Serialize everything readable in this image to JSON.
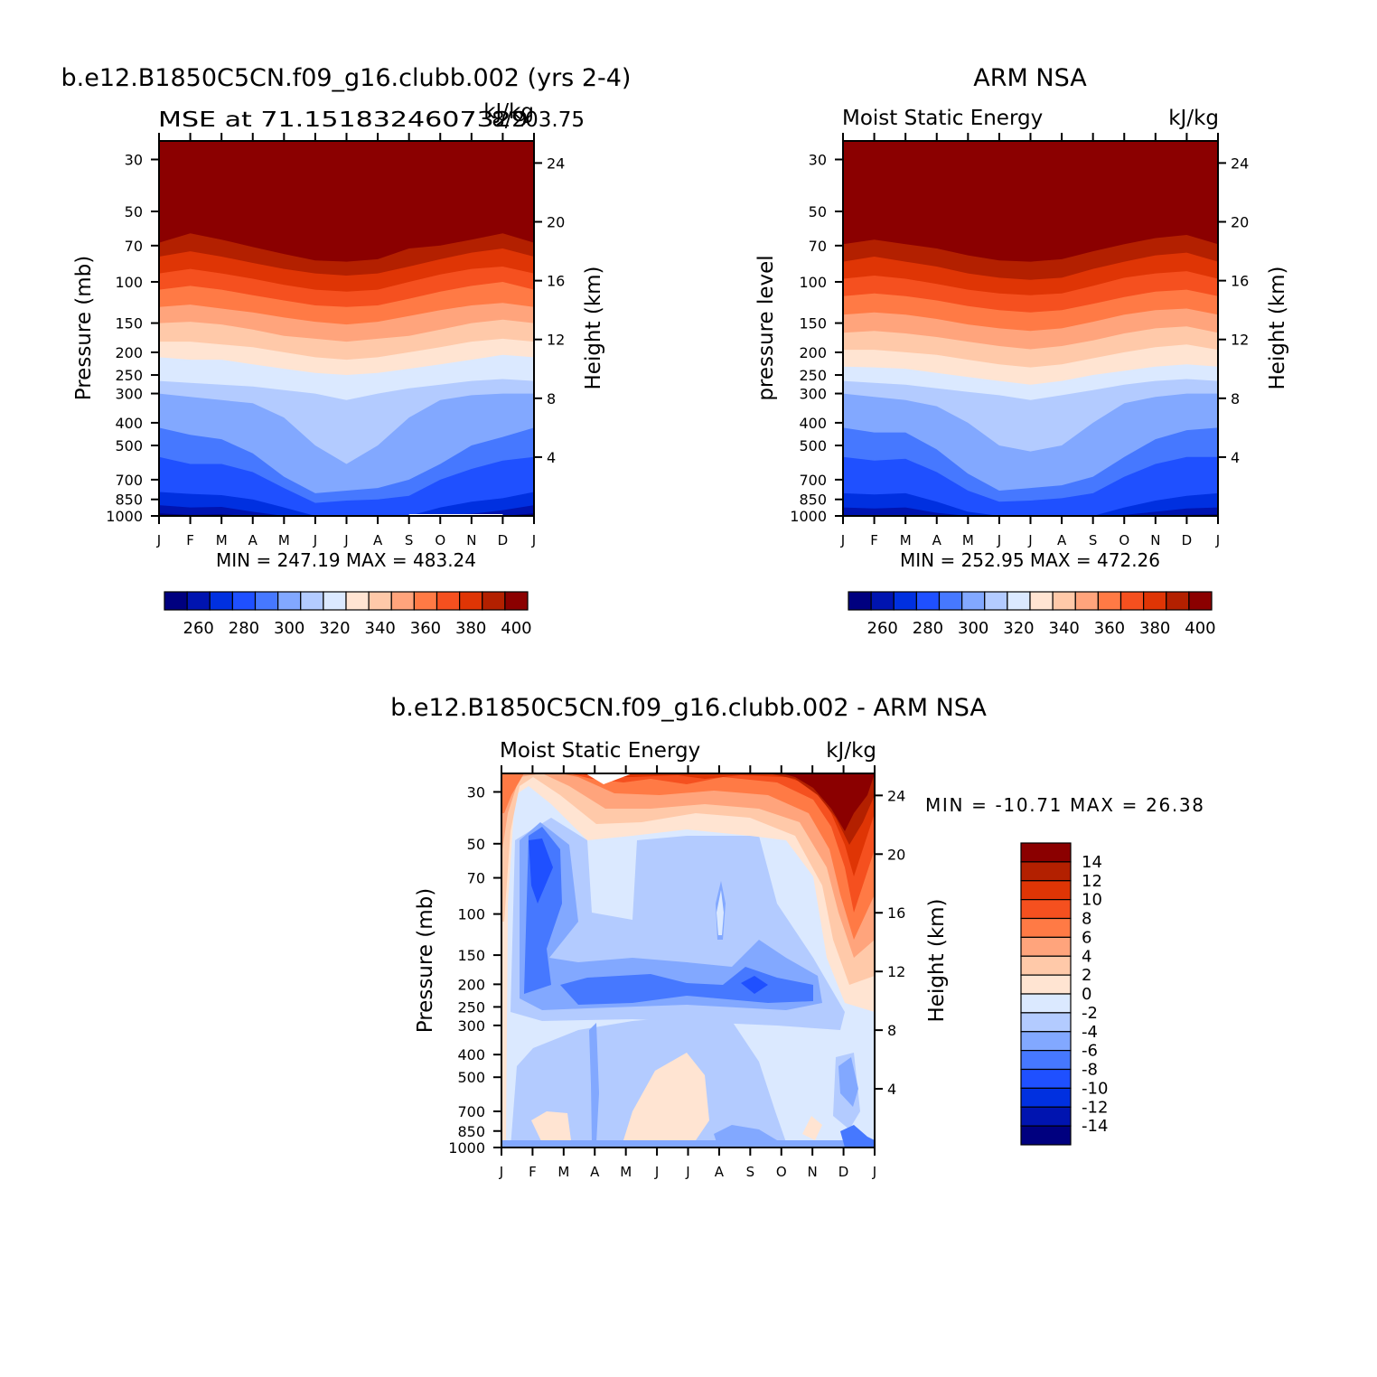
{
  "colors": {
    "mse_scale": [
      "#00007f",
      "#0014b0",
      "#0030e0",
      "#1f50ff",
      "#4678ff",
      "#82a8ff",
      "#b3cbff",
      "#dbe9ff",
      "#ffe4d2",
      "#ffc9a9",
      "#ffa47c",
      "#ff7a45",
      "#f5501f",
      "#df3505",
      "#b32000",
      "#8b0000"
    ],
    "diff_scale": [
      "#8b0000",
      "#b32000",
      "#df3505",
      "#f5501f",
      "#ff7a45",
      "#ffa47c",
      "#ffc9a9",
      "#ffe4d2",
      "#dbe9ff",
      "#b3cbff",
      "#82a8ff",
      "#4678ff",
      "#1f50ff",
      "#0030e0",
      "#0014b0",
      "#00007f"
    ]
  },
  "chart_data": [
    {
      "type": "heatmap",
      "title": "b.e12.B1850C5CN.f09_g16.clubb.002 (yrs 2-4)",
      "left_subtitle": "MSE at 71.1518324607329",
      "overlap_subtitle": "8/203.75",
      "right_subtitle": "kJ/kg",
      "x_tick_labels": [
        "J",
        "F",
        "M",
        "A",
        "M",
        "J",
        "J",
        "A",
        "S",
        "O",
        "N",
        "D",
        "J"
      ],
      "y_tick_labels": [
        "30",
        "50",
        "70",
        "100",
        "150",
        "200",
        "250",
        "300",
        "400",
        "500",
        "700",
        "850",
        "1000"
      ],
      "y_tick_values": [
        30,
        50,
        70,
        100,
        150,
        200,
        250,
        300,
        400,
        500,
        700,
        850,
        1000
      ],
      "ylabel": "Pressure (mb)",
      "right_tick_labels": [
        "24",
        "20",
        "16",
        "12",
        "8",
        "4"
      ],
      "right_tick_values": [
        24,
        20,
        16,
        12,
        8,
        4
      ],
      "right_ylabel": "Height (km)",
      "stats": "MIN = 247.19 MAX = 483.24",
      "colorbar_labels": [
        "260",
        "280",
        "300",
        "320",
        "340",
        "360",
        "380",
        "400"
      ],
      "colorbar_values": [
        260,
        280,
        300,
        320,
        340,
        360,
        380,
        400
      ],
      "boundaries_hPa": {
        "levels": [
          255,
          265,
          275,
          285,
          295,
          305,
          315,
          325,
          335,
          345,
          355,
          365,
          375,
          385,
          395
        ],
        "month_points": [
          0,
          1,
          2,
          3,
          4,
          5,
          6,
          7,
          8,
          9,
          10,
          11,
          12
        ],
        "p": [
          [
            975,
            990,
            985,
            1000,
            1000,
            1000,
            1000,
            1000,
            1000,
            1000,
            1000,
            1000,
            975
          ],
          [
            900,
            920,
            915,
            960,
            1000,
            1000,
            1000,
            1000,
            1000,
            990,
            980,
            945,
            900
          ],
          [
            790,
            805,
            815,
            850,
            920,
            1000,
            1000,
            1000,
            1000,
            920,
            870,
            840,
            790
          ],
          [
            560,
            600,
            600,
            650,
            760,
            880,
            860,
            850,
            820,
            700,
            630,
            580,
            560
          ],
          [
            420,
            450,
            470,
            540,
            680,
            800,
            780,
            760,
            700,
            600,
            500,
            460,
            420
          ],
          [
            300,
            310,
            320,
            330,
            380,
            500,
            600,
            500,
            380,
            320,
            305,
            300,
            300
          ],
          [
            265,
            270,
            275,
            280,
            290,
            300,
            320,
            300,
            285,
            275,
            265,
            260,
            265
          ],
          [
            210,
            215,
            215,
            225,
            235,
            245,
            250,
            245,
            235,
            225,
            215,
            205,
            210
          ],
          [
            180,
            180,
            185,
            190,
            200,
            210,
            215,
            210,
            200,
            190,
            180,
            175,
            180
          ],
          [
            150,
            148,
            152,
            160,
            170,
            175,
            180,
            175,
            170,
            160,
            150,
            145,
            150
          ],
          [
            128,
            125,
            130,
            135,
            142,
            148,
            152,
            148,
            140,
            132,
            126,
            123,
            128
          ],
          [
            108,
            104,
            108,
            114,
            120,
            126,
            128,
            126,
            118,
            110,
            104,
            100,
            108
          ],
          [
            92,
            88,
            92,
            97,
            103,
            108,
            110,
            108,
            100,
            93,
            88,
            86,
            92
          ],
          [
            78,
            74,
            78,
            83,
            88,
            92,
            94,
            92,
            86,
            80,
            75,
            72,
            78
          ],
          [
            68,
            62,
            66,
            71,
            76,
            81,
            82,
            80,
            72,
            70,
            66,
            62,
            68
          ]
        ]
      }
    },
    {
      "type": "heatmap",
      "title": "ARM NSA",
      "left_subtitle": "Moist Static Energy",
      "right_subtitle": "kJ/kg",
      "x_tick_labels": [
        "J",
        "F",
        "M",
        "A",
        "M",
        "J",
        "J",
        "A",
        "S",
        "O",
        "N",
        "D",
        "J"
      ],
      "y_tick_labels": [
        "30",
        "50",
        "70",
        "100",
        "150",
        "200",
        "250",
        "300",
        "400",
        "500",
        "700",
        "850",
        "1000"
      ],
      "y_tick_values": [
        30,
        50,
        70,
        100,
        150,
        200,
        250,
        300,
        400,
        500,
        700,
        850,
        1000
      ],
      "ylabel": "pressure level",
      "right_tick_labels": [
        "24",
        "20",
        "16",
        "12",
        "8",
        "4"
      ],
      "right_tick_values": [
        24,
        20,
        16,
        12,
        8,
        4
      ],
      "right_ylabel": "Height (km)",
      "stats": "MIN = 252.95 MAX = 472.26",
      "colorbar_labels": [
        "260",
        "280",
        "300",
        "320",
        "340",
        "360",
        "380",
        "400"
      ],
      "colorbar_values": [
        260,
        280,
        300,
        320,
        340,
        360,
        380,
        400
      ],
      "boundaries_hPa": {
        "levels": [
          255,
          265,
          275,
          285,
          295,
          305,
          315,
          325,
          335,
          345,
          355,
          365,
          375,
          385,
          395
        ],
        "month_points": [
          0,
          1,
          2,
          3,
          4,
          5,
          6,
          7,
          8,
          9,
          10,
          11,
          12
        ],
        "p": [
          [
            990,
            995,
            990,
            1000,
            1000,
            1000,
            1000,
            1000,
            1000,
            1000,
            1000,
            990,
            985
          ],
          [
            920,
            930,
            920,
            970,
            1000,
            1000,
            1000,
            1000,
            1000,
            990,
            960,
            930,
            920
          ],
          [
            800,
            810,
            800,
            870,
            960,
            1000,
            1000,
            1000,
            1000,
            920,
            860,
            820,
            800
          ],
          [
            560,
            580,
            570,
            650,
            780,
            870,
            860,
            840,
            800,
            680,
            600,
            560,
            560
          ],
          [
            420,
            440,
            440,
            520,
            660,
            780,
            760,
            740,
            680,
            560,
            470,
            430,
            420
          ],
          [
            300,
            310,
            320,
            340,
            400,
            500,
            530,
            500,
            400,
            330,
            310,
            300,
            300
          ],
          [
            265,
            270,
            275,
            285,
            295,
            305,
            320,
            305,
            290,
            275,
            265,
            260,
            265
          ],
          [
            230,
            232,
            235,
            245,
            255,
            265,
            275,
            265,
            250,
            240,
            230,
            225,
            230
          ],
          [
            195,
            195,
            200,
            205,
            215,
            225,
            232,
            225,
            212,
            200,
            190,
            185,
            195
          ],
          [
            165,
            162,
            166,
            172,
            180,
            188,
            194,
            188,
            178,
            166,
            158,
            155,
            165
          ],
          [
            138,
            135,
            138,
            144,
            152,
            158,
            162,
            158,
            148,
            138,
            132,
            130,
            138
          ],
          [
            115,
            112,
            115,
            120,
            127,
            132,
            135,
            132,
            124,
            116,
            110,
            108,
            115
          ],
          [
            97,
            94,
            97,
            102,
            108,
            112,
            114,
            112,
            104,
            96,
            92,
            90,
            97
          ],
          [
            82,
            78,
            82,
            86,
            92,
            96,
            98,
            96,
            88,
            82,
            77,
            75,
            82
          ],
          [
            69,
            66,
            69,
            72,
            77,
            81,
            82,
            80,
            74,
            69,
            65,
            63,
            69
          ]
        ]
      }
    },
    {
      "type": "heatmap",
      "title": "b.e12.B1850C5CN.f09_g16.clubb.002 - ARM NSA",
      "left_subtitle": "Moist Static Energy",
      "right_subtitle": "kJ/kg",
      "x_tick_labels": [
        "J",
        "F",
        "M",
        "A",
        "M",
        "J",
        "J",
        "A",
        "S",
        "O",
        "N",
        "D",
        "J"
      ],
      "y_tick_labels": [
        "30",
        "50",
        "70",
        "100",
        "150",
        "200",
        "250",
        "300",
        "400",
        "500",
        "700",
        "850",
        "1000"
      ],
      "y_tick_values": [
        30,
        50,
        70,
        100,
        150,
        200,
        250,
        300,
        400,
        500,
        700,
        850,
        1000
      ],
      "ylabel": "Pressure (mb)",
      "right_tick_labels": [
        "24",
        "20",
        "16",
        "12",
        "8",
        "4"
      ],
      "right_tick_values": [
        24,
        20,
        16,
        12,
        8,
        4
      ],
      "right_ylabel": "Height (km)",
      "stats": "MIN = -10.71 MAX = 26.38",
      "colorbar_labels": [
        "14",
        "12",
        "10",
        "8",
        "6",
        "4",
        "2",
        "0",
        "-2",
        "-4",
        "-6",
        "-8",
        "-10",
        "-12",
        "-14"
      ],
      "colorbar_values": [
        14,
        12,
        10,
        8,
        6,
        4,
        2,
        0,
        -2,
        -4,
        -6,
        -8,
        -10,
        -12,
        -14
      ]
    }
  ]
}
